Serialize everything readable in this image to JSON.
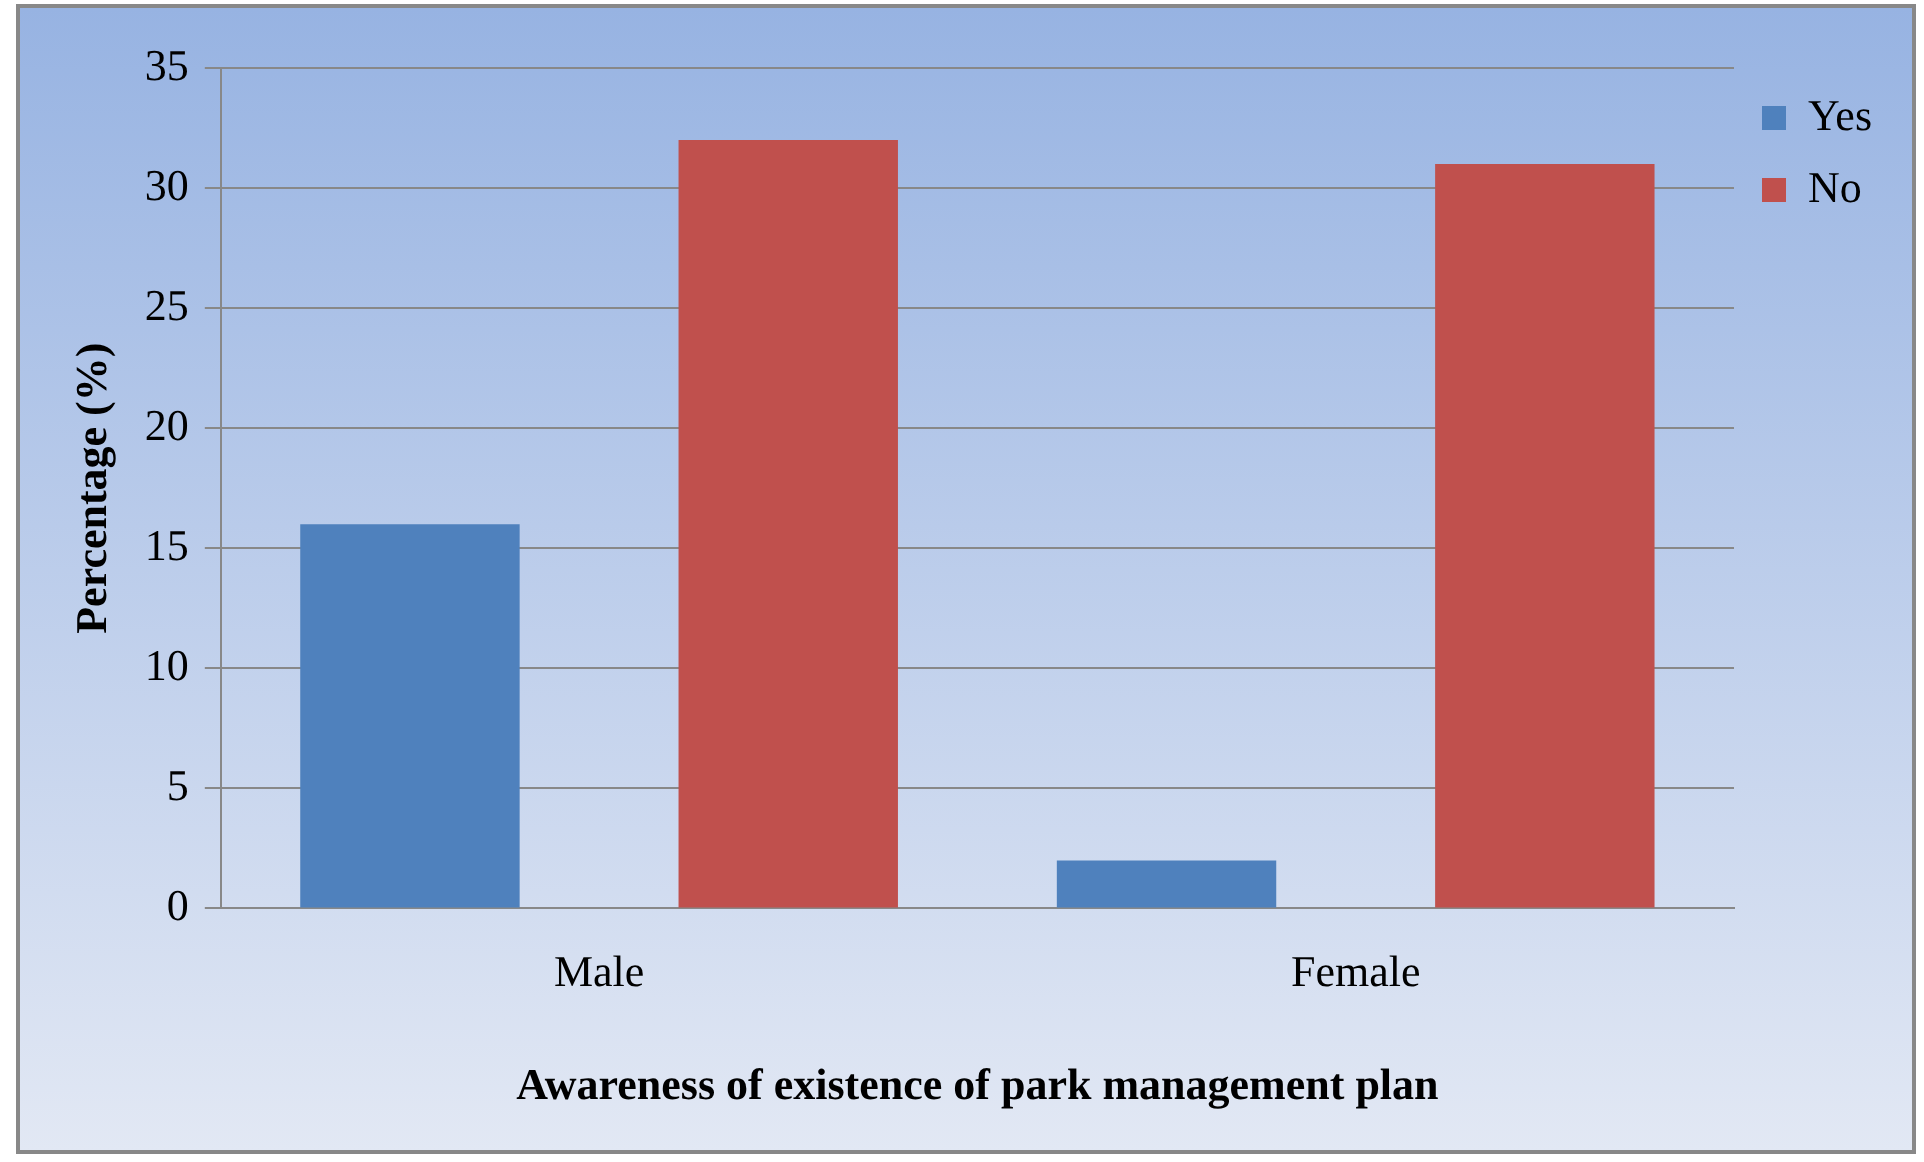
{
  "chart_data": {
    "type": "bar",
    "xlabel": "Awareness of existence of park management plan",
    "ylabel": "Percentage (%)",
    "categories": [
      "Male",
      "Female"
    ],
    "series": [
      {
        "name": "Yes",
        "color": "#4f81bd",
        "values": [
          16,
          2
        ]
      },
      {
        "name": "No",
        "color": "#c0504d",
        "values": [
          32,
          31
        ]
      }
    ],
    "ylim": [
      0,
      35
    ],
    "yticks": [
      0,
      5,
      10,
      15,
      20,
      25,
      30,
      35
    ],
    "grid": "y",
    "legend": "top right"
  }
}
